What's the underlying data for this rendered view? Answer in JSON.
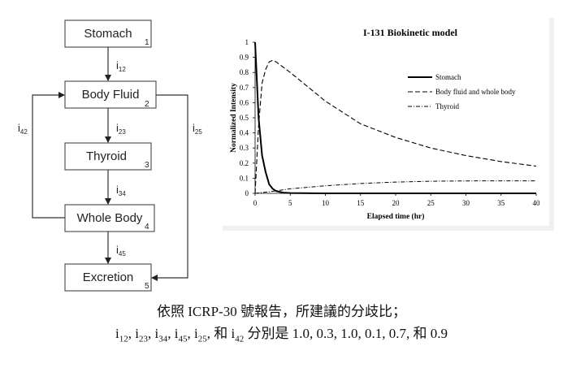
{
  "diagram": {
    "boxes": [
      {
        "label": "Stomach",
        "num": "1"
      },
      {
        "label": "Body Fluid",
        "num": "2"
      },
      {
        "label": "Thyroid",
        "num": "3"
      },
      {
        "label": "Whole Body",
        "num": "4"
      },
      {
        "label": "Excretion",
        "num": "5"
      }
    ],
    "rates": [
      {
        "main": "i",
        "sub": "12"
      },
      {
        "main": "i",
        "sub": "23"
      },
      {
        "main": "i",
        "sub": "34"
      },
      {
        "main": "i",
        "sub": "45"
      },
      {
        "main": "i",
        "sub": "25"
      },
      {
        "main": "i",
        "sub": "42"
      }
    ]
  },
  "chart_data": {
    "type": "line",
    "title": "I-131 Biokinetic model",
    "xlabel": "Elapsed  time (hr)",
    "ylabel": "Normalized Intensity",
    "xlim": [
      0,
      40
    ],
    "ylim": [
      0,
      1
    ],
    "x_ticks": [
      "0",
      "5",
      "10",
      "15",
      "20",
      "25",
      "30",
      "35",
      "40"
    ],
    "y_ticks": [
      "0",
      "0.1",
      "0.2",
      "0.3",
      "0.4",
      "0.5",
      "0.6",
      "0.7",
      "0.8",
      "0.9",
      "1"
    ],
    "grid": false,
    "legend_position": "right",
    "series": [
      {
        "name": "Stomach",
        "style": "solid",
        "x": [
          0,
          0.5,
          1,
          1.5,
          2,
          2.5,
          3,
          4,
          5,
          10,
          20,
          40
        ],
        "y": [
          1.0,
          0.5,
          0.25,
          0.14,
          0.06,
          0.03,
          0.015,
          0.005,
          0.002,
          0.0,
          0.0,
          0.0
        ]
      },
      {
        "name": "Body fluid and whole body",
        "style": "dashed",
        "x": [
          0,
          0.5,
          1,
          1.5,
          2,
          2.5,
          3,
          5,
          10,
          15,
          20,
          25,
          30,
          35,
          40
        ],
        "y": [
          0.0,
          0.45,
          0.73,
          0.82,
          0.87,
          0.88,
          0.87,
          0.8,
          0.61,
          0.46,
          0.37,
          0.3,
          0.25,
          0.21,
          0.18
        ]
      },
      {
        "name": "Thyroid",
        "style": "dashdot",
        "x": [
          0,
          2,
          5,
          10,
          15,
          20,
          25,
          30,
          35,
          40
        ],
        "y": [
          0.0,
          0.01,
          0.03,
          0.05,
          0.065,
          0.075,
          0.08,
          0.082,
          0.083,
          0.083
        ]
      }
    ]
  },
  "caption": {
    "line1": "依照 ICRP-30 號報告，所建議的分歧比；",
    "line2_parts": [
      {
        "t": "i",
        "s": "12"
      },
      {
        "t": ", i",
        "s": "23"
      },
      {
        "t": ", i",
        "s": "34"
      },
      {
        "t": ", i",
        "s": "45"
      },
      {
        "t": ", i",
        "s": "25"
      },
      {
        "t": ",  和  i",
        "s": "42"
      },
      {
        "t": "  分別是  1.0, 0.3, 1.0, 0.1, 0.7,  和  0.9",
        "s": ""
      }
    ]
  }
}
